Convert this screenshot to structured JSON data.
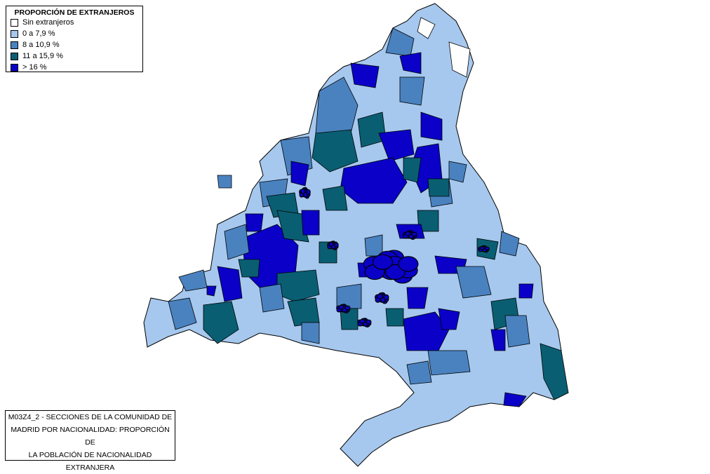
{
  "legend": {
    "title": "PROPORCIÓN DE EXTRANJEROS",
    "items": [
      {
        "label": "Sin extranjeros",
        "color": "#ffffff"
      },
      {
        "label": "0 a 7,9 %",
        "color": "#a6c8ee"
      },
      {
        "label": "8 a 10,9 %",
        "color": "#4a82c0"
      },
      {
        "label": "11 a 15,9 %",
        "color": "#0a5e72"
      },
      {
        "label": "> 16 %",
        "color": "#0a00c8"
      }
    ]
  },
  "caption": [
    "M03Z4_2 - SECCIONES DE LA COMUNIDAD DE",
    "MADRID POR NACIONALIDAD: PROPORCIÓN DE",
    "LA POBLACIÓN DE NACIONALIDAD",
    "EXTRANJERA"
  ]
}
